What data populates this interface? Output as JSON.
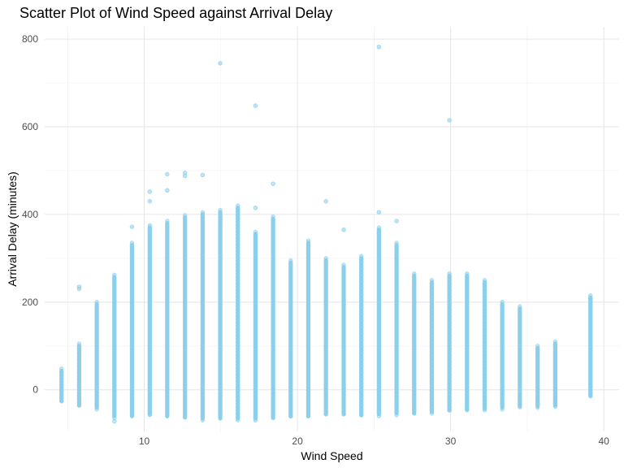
{
  "chart_data": {
    "type": "scatter",
    "title": "Scatter Plot of Wind Speed against Arrival Delay",
    "xlabel": "Wind Speed",
    "ylabel": "Arrival Delay (minutes)",
    "xlim": [
      3.5,
      41
    ],
    "ylim": [
      -95,
      828
    ],
    "x_ticks": [
      10,
      20,
      30,
      40
    ],
    "y_ticks": [
      0,
      200,
      400,
      600,
      800
    ],
    "grid": true,
    "legend": "none",
    "point_color": "#87CEEB",
    "point_alpha": 0.55,
    "columns": [
      {
        "x": 4.6,
        "min": -30,
        "max": 48,
        "outliers": []
      },
      {
        "x": 5.75,
        "min": -40,
        "max": 105,
        "outliers": [
          230,
          235
        ]
      },
      {
        "x": 6.9,
        "min": -45,
        "max": 200,
        "outliers": []
      },
      {
        "x": 8.05,
        "min": -65,
        "max": 262,
        "outliers": [
          -72
        ]
      },
      {
        "x": 9.2,
        "min": -65,
        "max": 335,
        "outliers": [
          372
        ]
      },
      {
        "x": 10.36,
        "min": -62,
        "max": 375,
        "outliers": [
          430,
          452
        ]
      },
      {
        "x": 11.5,
        "min": -65,
        "max": 385,
        "outliers": [
          455,
          492
        ]
      },
      {
        "x": 12.66,
        "min": -68,
        "max": 398,
        "outliers": [
          495,
          488
        ]
      },
      {
        "x": 13.81,
        "min": -70,
        "max": 405,
        "outliers": [
          490
        ]
      },
      {
        "x": 14.96,
        "min": -70,
        "max": 410,
        "outliers": [
          745
        ]
      },
      {
        "x": 16.11,
        "min": -70,
        "max": 420,
        "outliers": []
      },
      {
        "x": 17.26,
        "min": -70,
        "max": 360,
        "outliers": [
          415,
          648
        ]
      },
      {
        "x": 18.41,
        "min": -68,
        "max": 395,
        "outliers": [
          470
        ]
      },
      {
        "x": 19.56,
        "min": -65,
        "max": 295,
        "outliers": []
      },
      {
        "x": 20.71,
        "min": -65,
        "max": 340,
        "outliers": []
      },
      {
        "x": 21.86,
        "min": -60,
        "max": 300,
        "outliers": [
          430
        ]
      },
      {
        "x": 23.02,
        "min": -60,
        "max": 285,
        "outliers": [
          365
        ]
      },
      {
        "x": 24.17,
        "min": -62,
        "max": 305,
        "outliers": []
      },
      {
        "x": 25.32,
        "min": -60,
        "max": 370,
        "outliers": [
          405,
          782
        ]
      },
      {
        "x": 26.47,
        "min": -58,
        "max": 335,
        "outliers": [
          385
        ]
      },
      {
        "x": 27.62,
        "min": -58,
        "max": 265,
        "outliers": []
      },
      {
        "x": 28.77,
        "min": -55,
        "max": 250,
        "outliers": []
      },
      {
        "x": 29.92,
        "min": -52,
        "max": 265,
        "outliers": [
          615
        ]
      },
      {
        "x": 31.07,
        "min": -50,
        "max": 265,
        "outliers": []
      },
      {
        "x": 32.22,
        "min": -48,
        "max": 250,
        "outliers": []
      },
      {
        "x": 33.37,
        "min": -45,
        "max": 200,
        "outliers": []
      },
      {
        "x": 34.52,
        "min": -42,
        "max": 190,
        "outliers": []
      },
      {
        "x": 35.68,
        "min": -42,
        "max": 100,
        "outliers": []
      },
      {
        "x": 36.83,
        "min": -40,
        "max": 110,
        "outliers": []
      },
      {
        "x": 39.13,
        "min": -18,
        "max": 215,
        "outliers": []
      }
    ]
  }
}
